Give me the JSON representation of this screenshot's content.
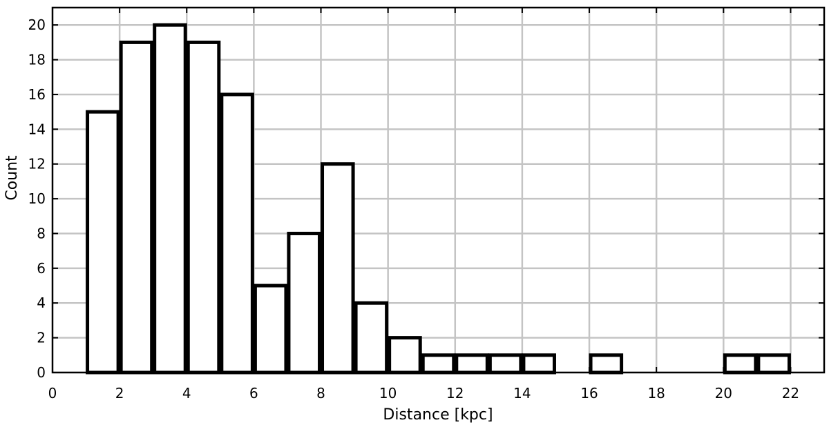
{
  "chart_data": {
    "type": "bar",
    "xlabel": "Distance [kpc]",
    "ylabel": "Count",
    "xlim": [
      0,
      23
    ],
    "ylim": [
      0,
      21
    ],
    "xticks": [
      0,
      2,
      4,
      6,
      8,
      10,
      12,
      14,
      16,
      18,
      20,
      22
    ],
    "yticks": [
      0,
      2,
      4,
      6,
      8,
      10,
      12,
      14,
      16,
      18,
      20
    ],
    "grid": true,
    "bins": [
      {
        "x0": 1,
        "x1": 2,
        "count": 15
      },
      {
        "x0": 2,
        "x1": 3,
        "count": 19
      },
      {
        "x0": 3,
        "x1": 4,
        "count": 20
      },
      {
        "x0": 4,
        "x1": 5,
        "count": 19
      },
      {
        "x0": 5,
        "x1": 6,
        "count": 16
      },
      {
        "x0": 6,
        "x1": 7,
        "count": 5
      },
      {
        "x0": 7,
        "x1": 8,
        "count": 8
      },
      {
        "x0": 8,
        "x1": 9,
        "count": 12
      },
      {
        "x0": 9,
        "x1": 10,
        "count": 4
      },
      {
        "x0": 10,
        "x1": 11,
        "count": 2
      },
      {
        "x0": 11,
        "x1": 12,
        "count": 1
      },
      {
        "x0": 12,
        "x1": 13,
        "count": 1
      },
      {
        "x0": 13,
        "x1": 14,
        "count": 1
      },
      {
        "x0": 14,
        "x1": 15,
        "count": 1
      },
      {
        "x0": 16,
        "x1": 17,
        "count": 1
      },
      {
        "x0": 20,
        "x1": 21,
        "count": 1
      },
      {
        "x0": 21,
        "x1": 22,
        "count": 1
      }
    ]
  }
}
